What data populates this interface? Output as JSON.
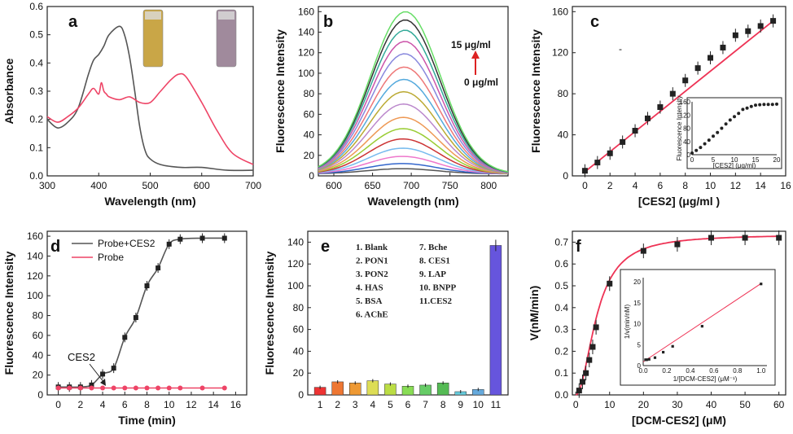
{
  "chart_data": [
    {
      "panel": "a",
      "type": "line",
      "xlabel": "Wavelength (nm)",
      "ylabel": "Absorbance",
      "xlim": [
        300,
        700
      ],
      "ylim": [
        0,
        0.6
      ],
      "xticks": [
        300,
        400,
        500,
        600,
        700
      ],
      "yticks": [
        0.0,
        0.1,
        0.2,
        0.3,
        0.4,
        0.5,
        0.6
      ],
      "series": [
        {
          "color": "#555555",
          "x": [
            300,
            320,
            340,
            360,
            380,
            390,
            400,
            410,
            420,
            440,
            450,
            460,
            470,
            480,
            490,
            500,
            520,
            560,
            600,
            650,
            700
          ],
          "y": [
            0.2,
            0.17,
            0.19,
            0.24,
            0.36,
            0.41,
            0.43,
            0.46,
            0.5,
            0.53,
            0.5,
            0.42,
            0.3,
            0.17,
            0.09,
            0.06,
            0.04,
            0.03,
            0.03,
            0.02,
            0.02
          ]
        },
        {
          "color": "#ee4466",
          "x": [
            300,
            320,
            340,
            360,
            380,
            390,
            400,
            405,
            410,
            415,
            420,
            440,
            460,
            480,
            500,
            520,
            540,
            555,
            570,
            600,
            630,
            660,
            700
          ],
          "y": [
            0.21,
            0.19,
            0.21,
            0.24,
            0.29,
            0.31,
            0.29,
            0.33,
            0.3,
            0.29,
            0.28,
            0.27,
            0.28,
            0.26,
            0.26,
            0.3,
            0.34,
            0.36,
            0.35,
            0.26,
            0.16,
            0.08,
            0.04
          ]
        }
      ],
      "vials": [
        "#c9a647",
        "#a08a9c"
      ]
    },
    {
      "panel": "b",
      "type": "line",
      "xlabel": "Wavelength (nm)",
      "ylabel": "Fluorescence Intensity",
      "xlim": [
        580,
        825
      ],
      "ylim": [
        0,
        165
      ],
      "xticks": [
        600,
        650,
        700,
        750,
        800
      ],
      "yticks": [
        0,
        20,
        40,
        60,
        80,
        100,
        120,
        140,
        160
      ],
      "annotation_top": "15 μg/ml",
      "annotation_bottom": "0 μg/ml",
      "peaks": [
        5,
        10,
        17,
        25,
        34,
        44,
        55,
        68,
        80,
        92,
        104,
        117,
        129,
        140,
        150,
        158
      ],
      "colors": [
        "#555555",
        "#3366cc",
        "#ee77cc",
        "#77bbee",
        "#cc3333",
        "#99cc33",
        "#ee9955",
        "#bb88cc",
        "#bbaa33",
        "#55aadd",
        "#ee7777",
        "#8888dd",
        "#cc55aa",
        "#33aa99",
        "#333333",
        "#66dd66"
      ]
    },
    {
      "panel": "c",
      "type": "scatter",
      "xlabel": "[CES2] (μg/ml )",
      "ylabel": "Fluorescence Intensity",
      "xlim": [
        -1,
        16
      ],
      "ylim": [
        0,
        165
      ],
      "xticks": [
        0,
        2,
        4,
        6,
        8,
        10,
        12,
        14,
        16
      ],
      "yticks": [
        0,
        40,
        80,
        120,
        160
      ],
      "x": [
        0,
        1,
        2,
        3,
        4,
        5,
        6,
        7,
        8,
        9,
        10,
        11,
        12,
        13,
        14,
        15
      ],
      "y": [
        5,
        13,
        22,
        33,
        44,
        56,
        67,
        80,
        93,
        105,
        115,
        125,
        137,
        141,
        146,
        151
      ],
      "fit": [
        [
          0,
          4
        ],
        [
          15,
          151
        ]
      ],
      "inset": {
        "xlabel": "[CES2] (μg/ml)",
        "ylabel": "Fluorescence Intensity",
        "xticks": [
          0,
          5,
          10,
          15,
          20
        ],
        "yticks": [
          0,
          40,
          80,
          120,
          160
        ],
        "x": [
          0,
          1,
          2,
          3,
          4,
          5,
          6,
          7,
          8,
          9,
          10,
          11,
          12,
          13,
          14,
          15,
          16,
          17,
          18,
          19,
          20
        ],
        "y": [
          5,
          13,
          22,
          33,
          44,
          56,
          67,
          80,
          93,
          105,
          115,
          125,
          137,
          141,
          146,
          150,
          151,
          152,
          152,
          152,
          153
        ]
      }
    },
    {
      "panel": "d",
      "type": "line",
      "xlabel": "Time (min)",
      "ylabel": "Fluorescence Intensity",
      "xlim": [
        -1,
        17
      ],
      "ylim": [
        0,
        165
      ],
      "xticks": [
        0,
        2,
        4,
        6,
        8,
        10,
        12,
        14,
        16
      ],
      "yticks": [
        0,
        20,
        40,
        60,
        80,
        100,
        120,
        140,
        160
      ],
      "annotation": "CES2",
      "series": [
        {
          "name": "Probe+CES2",
          "color": "#555555",
          "x": [
            0,
            1,
            2,
            3,
            4,
            5,
            6,
            7,
            8,
            9,
            10,
            11,
            13,
            15
          ],
          "y": [
            8,
            8,
            8,
            10,
            21,
            27,
            58,
            78,
            110,
            128,
            152,
            157,
            158,
            158
          ]
        },
        {
          "name": "Probe",
          "color": "#ee4466",
          "x": [
            0,
            1,
            2,
            3,
            4,
            5,
            6,
            7,
            8,
            9,
            10,
            11,
            13,
            15
          ],
          "y": [
            7,
            7,
            7,
            7,
            7,
            7,
            7,
            7,
            7,
            7,
            7,
            7,
            7,
            7
          ]
        }
      ]
    },
    {
      "panel": "e",
      "type": "bar",
      "ylabel": "Fluorescence Intensity",
      "ylim": [
        0,
        150
      ],
      "yticks": [
        0,
        20,
        40,
        60,
        80,
        100,
        120,
        140
      ],
      "categories": [
        "1",
        "2",
        "3",
        "4",
        "5",
        "6",
        "7",
        "8",
        "9",
        "10",
        "11"
      ],
      "values": [
        7,
        12,
        11,
        13,
        10,
        8,
        9,
        11,
        3,
        5,
        137
      ],
      "colors": [
        "#ee3333",
        "#ee7733",
        "#ee9933",
        "#dddd55",
        "#bbdd44",
        "#88dd55",
        "#66cc66",
        "#55bb55",
        "#66ccdd",
        "#66aadd",
        "#6655dd"
      ],
      "legend": [
        "1. Blank",
        "2. PON1",
        "3. PON2",
        "4. HAS",
        "5. BSA",
        "6. AChE",
        "7. Bche",
        "8. CES1",
        "9. LAP",
        "10. BNPP",
        "11.CES2"
      ]
    },
    {
      "panel": "f",
      "type": "scatter",
      "xlabel": "[DCM-CES2] (μM)",
      "ylabel": "V(nM/min)",
      "xlim": [
        -1,
        62
      ],
      "ylim": [
        0,
        0.75
      ],
      "xticks": [
        0,
        10,
        20,
        30,
        40,
        50,
        60
      ],
      "yticks": [
        0.0,
        0.1,
        0.2,
        0.3,
        0.4,
        0.5,
        0.6,
        0.7
      ],
      "x": [
        1,
        2,
        3,
        4,
        5,
        6,
        10,
        20,
        30,
        40,
        50,
        60
      ],
      "y": [
        0.02,
        0.06,
        0.1,
        0.16,
        0.22,
        0.31,
        0.51,
        0.66,
        0.69,
        0.72,
        0.72,
        0.72
      ],
      "inset": {
        "xlabel": "1/[DCM-CES2] (μM⁻¹)",
        "ylabel": "1/v(min/nM)",
        "xticks": [
          0.0,
          0.2,
          0.4,
          0.6,
          0.8,
          1.0
        ],
        "yticks": [
          0,
          5,
          10,
          15,
          20
        ],
        "x": [
          0.02,
          0.03,
          0.05,
          0.1,
          0.17,
          0.25,
          0.5,
          1.0
        ],
        "y": [
          1.4,
          1.4,
          1.5,
          1.9,
          3.2,
          4.6,
          9.4,
          19.5
        ]
      }
    }
  ]
}
